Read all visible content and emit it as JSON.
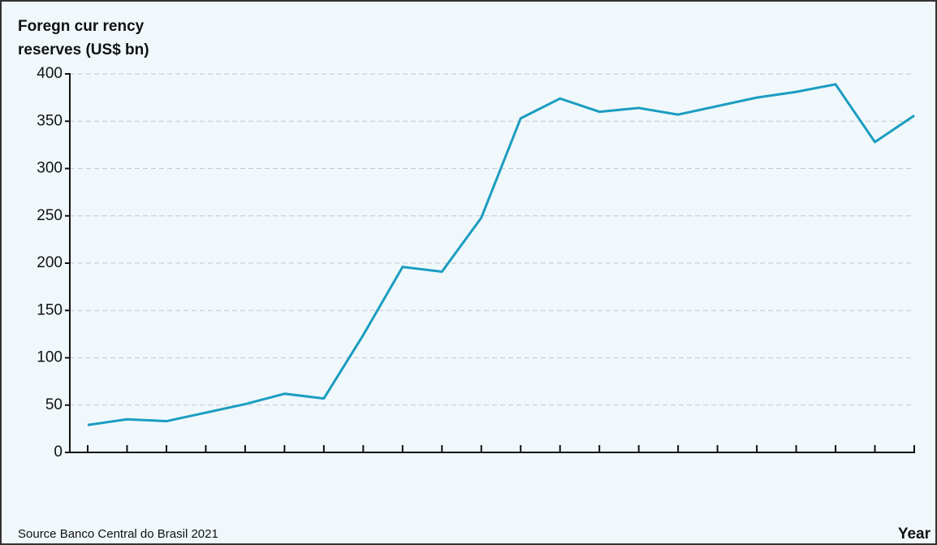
{
  "chart_data": {
    "type": "line",
    "ylabel": [
      "Foregn cur rency",
      "reserves (US$ bn)"
    ],
    "xlabel": "Year",
    "source": "Source Banco Central do Brasil 2021",
    "categories": [
      null,
      null,
      null,
      null,
      null,
      null,
      null,
      null,
      null,
      null,
      null,
      null,
      null,
      null,
      null,
      null,
      null,
      null,
      null,
      null,
      null,
      null
    ],
    "series": [
      {
        "color": "#1b9dc0",
        "values": [
          29,
          35,
          33,
          42,
          51,
          62,
          57,
          124,
          196,
          191,
          248,
          353,
          374,
          360,
          364,
          357,
          366,
          375,
          381,
          389,
          328,
          356
        ]
      }
    ],
    "ylim": [
      0,
      400
    ],
    "yticks": [
      0,
      50,
      100,
      150,
      200,
      250,
      300,
      350,
      400
    ],
    "grid": true
  }
}
